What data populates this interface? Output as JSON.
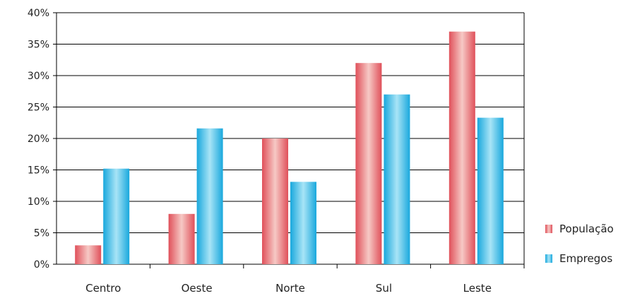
{
  "chart_data": {
    "type": "bar",
    "title": "",
    "xlabel": "",
    "ylabel": "",
    "categories": [
      "Centro",
      "Oeste",
      "Norte",
      "Sul",
      "Leste"
    ],
    "series": [
      {
        "name": "População",
        "values": [
          3,
          8,
          20,
          32,
          37
        ]
      },
      {
        "name": "Empregos",
        "values": [
          15.2,
          21.6,
          13.1,
          27,
          23.3
        ]
      }
    ],
    "y_ticks": [
      "0%",
      "5%",
      "10%",
      "15%",
      "20%",
      "25%",
      "30%",
      "35%",
      "40%"
    ],
    "ylim": [
      0,
      40
    ],
    "y_unit": "%",
    "grid": true,
    "legend_position": "right",
    "colors": {
      "População": "#e8767a",
      "Empregos": "#3cb8e0"
    }
  }
}
